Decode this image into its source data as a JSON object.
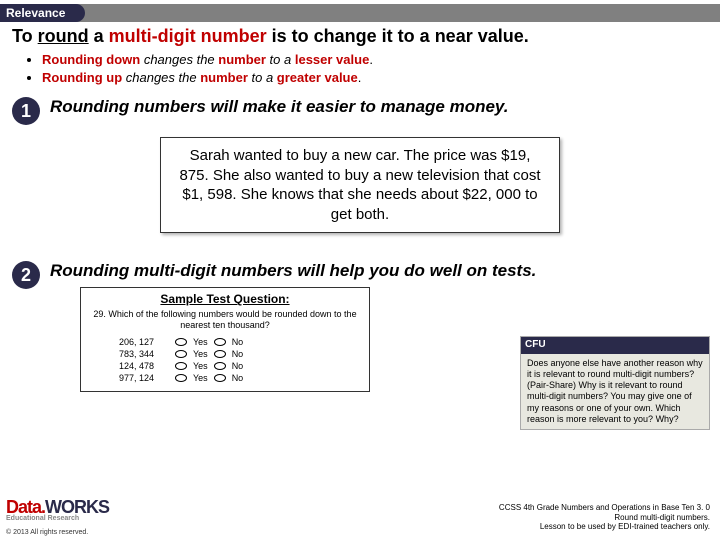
{
  "header": {
    "label": "Relevance"
  },
  "title": {
    "prefix": "To ",
    "round": "round",
    "mid1": " a ",
    "multi": "multi-digit number",
    "mid2": " is to change it to a ",
    "near": "near value",
    "suffix": "."
  },
  "bullet1": {
    "rd": "Rounding down",
    "changes": " changes the ",
    "num": " number",
    "to": " to a ",
    "val": " lesser value",
    "end": "."
  },
  "bullet2": {
    "rd": "Rounding up",
    "changes": " changes the ",
    "num": " number",
    "to": " to a ",
    "val": " greater value",
    "end": "."
  },
  "sec1": {
    "num": "1",
    "text": "Rounding numbers will make it easier to manage money."
  },
  "story": "Sarah wanted to buy a new car.  The price was $19, 875.  She also wanted to buy a new television that cost $1, 598.  She knows that she needs about $22, 000 to get both.",
  "sec2": {
    "num": "2",
    "text": "Rounding multi-digit numbers will help you do well on tests."
  },
  "sample": {
    "title": "Sample Test Question:",
    "q": "29. Which of the following numbers would be rounded down to the nearest ten thousand?",
    "rows": [
      {
        "n": "206, 127",
        "y": "Yes",
        "no": "No"
      },
      {
        "n": "783, 344",
        "y": "Yes",
        "no": "No"
      },
      {
        "n": "124, 478",
        "y": "Yes",
        "no": "No"
      },
      {
        "n": "977, 124",
        "y": "Yes",
        "no": "No"
      }
    ]
  },
  "cfu": {
    "title": "CFU",
    "body": "Does anyone else have another reason why it is relevant to round multi-digit numbers? (Pair-Share) Why is it relevant to round multi-digit numbers? You may give one of my reasons or one of your own. Which reason is more relevant to you? Why?"
  },
  "footer": {
    "logo1": "Data.",
    "logo2": "WORKS",
    "logo3": "Educational Research",
    "copyright": "© 2013 All rights reserved.",
    "right1": "CCSS 4th Grade Numbers and Operations in Base Ten 3. 0",
    "right2": "Round multi-digit numbers.",
    "right3": "Lesson to be used by EDI-trained teachers only."
  }
}
